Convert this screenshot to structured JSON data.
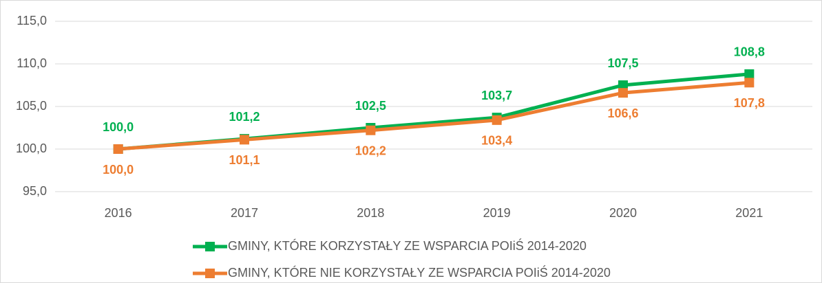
{
  "chart_data": {
    "type": "line",
    "categories": [
      "2016",
      "2017",
      "2018",
      "2019",
      "2020",
      "2021"
    ],
    "series": [
      {
        "name": "GMINY, KTÓRE KORZYSTAŁY ZE WSPARCIA POIiŚ 2014-2020",
        "color": "#00b050",
        "values": [
          100.0,
          101.2,
          102.5,
          103.7,
          107.5,
          108.8
        ],
        "value_labels": [
          "100,0",
          "101,2",
          "102,5",
          "103,7",
          "107,5",
          "108,8"
        ]
      },
      {
        "name": "GMINY, KTÓRE NIE KORZYSTAŁY ZE WSPARCIA POIiŚ 2014-2020",
        "color": "#ed7d31",
        "values": [
          100.0,
          101.1,
          102.2,
          103.4,
          106.6,
          107.8
        ],
        "value_labels": [
          "100,0",
          "101,1",
          "102,2",
          "103,4",
          "106,6",
          "107,8"
        ]
      }
    ],
    "ylim": [
      95,
      115
    ],
    "yticks": [
      {
        "value": 95,
        "label": "95,0"
      },
      {
        "value": 100,
        "label": "100,0"
      },
      {
        "value": 105,
        "label": "105,0"
      },
      {
        "value": 110,
        "label": "110,0"
      },
      {
        "value": 115,
        "label": "115,0"
      }
    ],
    "grid": true,
    "legend": "bottom"
  }
}
